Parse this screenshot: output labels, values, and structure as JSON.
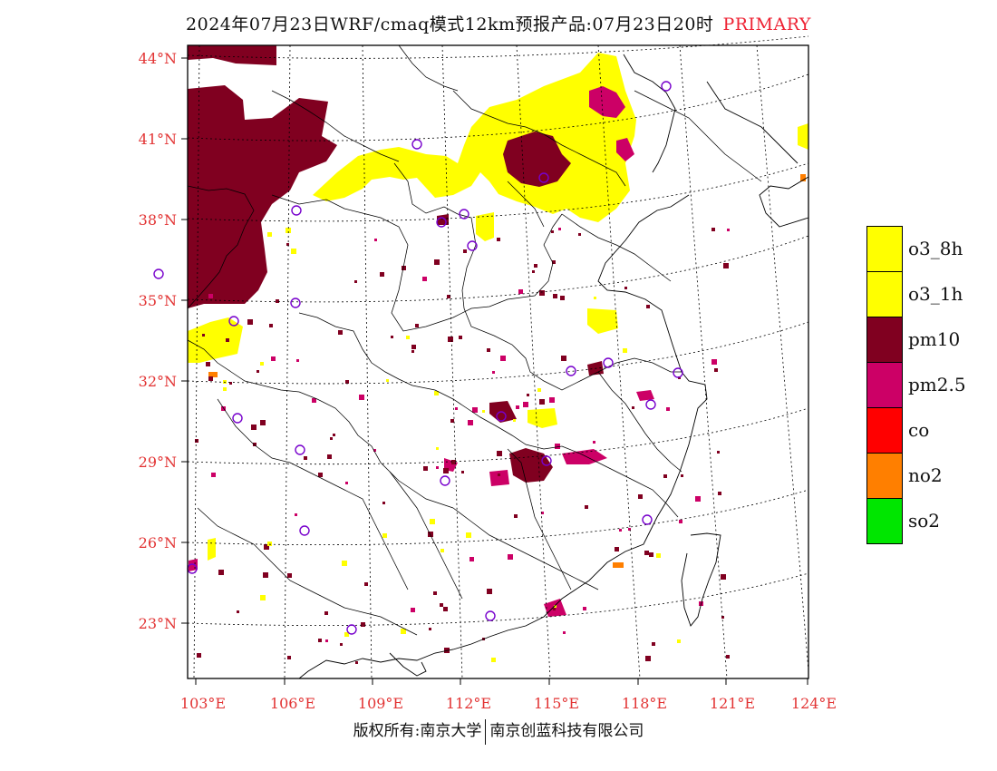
{
  "title": {
    "main": "2024年07月23日WRF/cmaq模式12km预报产品:07月23日20时",
    "tag": "PRIMARY"
  },
  "axes": {
    "lat_labels": [
      "44°N",
      "41°N",
      "38°N",
      "35°N",
      "32°N",
      "29°N",
      "26°N",
      "23°N"
    ],
    "lon_labels": [
      "103°E",
      "106°E",
      "109°E",
      "112°E",
      "115°E",
      "118°E",
      "121°E",
      "124°E"
    ],
    "label_color": "#e23333"
  },
  "legend": [
    {
      "label": "o3_8h",
      "color": "#ffff00"
    },
    {
      "label": "o3_1h",
      "color": "#ffff00"
    },
    {
      "label": "pm10",
      "color": "#800020"
    },
    {
      "label": "pm2.5",
      "color": "#cc0066"
    },
    {
      "label": "co",
      "color": "#ff0000"
    },
    {
      "label": "no2",
      "color": "#ff7f00"
    },
    {
      "label": "so2",
      "color": "#00e600"
    }
  ],
  "footer": {
    "left": "版权所有:南京大学",
    "right": "南京创蓝科技有限公司"
  }
}
